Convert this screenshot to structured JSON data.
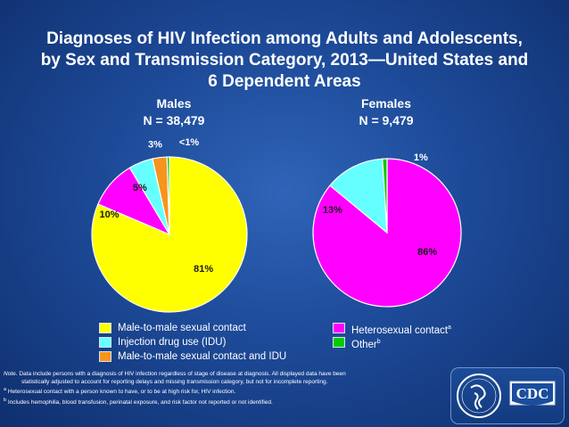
{
  "title": {
    "line1": "Diagnoses of HIV Infection among Adults and Adolescents,",
    "line2": "by Sex and Transmission Category, 2013—United States and",
    "line3": "6 Dependent Areas"
  },
  "colors": {
    "msm": "#ffff00",
    "idu": "#66ffff",
    "msm_idu": "#f7941d",
    "heterosexual": "#ff00ff",
    "other": "#00cc00"
  },
  "chart_data": [
    {
      "type": "pie",
      "title": "Males",
      "subtitle": "N = 38,479",
      "slices": [
        {
          "category": "Male-to-male sexual contact",
          "value": 81,
          "label": "81%"
        },
        {
          "category": "Heterosexual contact",
          "value": 10,
          "label": "10%"
        },
        {
          "category": "Injection drug use (IDU)",
          "value": 5,
          "label": "5%"
        },
        {
          "category": "Male-to-male sexual contact and IDU",
          "value": 3,
          "label": "3%"
        },
        {
          "category": "Other",
          "value": 0.5,
          "label": "<1%"
        }
      ]
    },
    {
      "type": "pie",
      "title": "Females",
      "subtitle": "N = 9,479",
      "slices": [
        {
          "category": "Heterosexual contact",
          "value": 86,
          "label": "86%"
        },
        {
          "category": "Injection drug use (IDU)",
          "value": 13,
          "label": "13%"
        },
        {
          "category": "Other",
          "value": 1,
          "label": "1%"
        }
      ]
    }
  ],
  "legend": {
    "left": [
      {
        "key": "msm",
        "label": "Male-to-male sexual contact"
      },
      {
        "key": "idu",
        "label": "Injection drug use (IDU)"
      },
      {
        "key": "msm_idu",
        "label": "Male-to-male sexual contact and IDU"
      }
    ],
    "right": [
      {
        "key": "heterosexual",
        "label": "Heterosexual contact",
        "sup": "a"
      },
      {
        "key": "other",
        "label": "Other",
        "sup": "b"
      }
    ]
  },
  "notes": {
    "note_label": "Note.",
    "note_text": "Data include persons with a diagnosis of HIV infection regardless of stage of disease at diagnosis. All displayed data have been",
    "note_text2": "statistically adjusted to account for reporting delays and missing transmission category, but not for incomplete reporting.",
    "a_marker": "a",
    "a_text": "Heterosexual contact with a person known to have, or to be at high risk for, HIV infection.",
    "b_marker": "b",
    "b_text": "Includes hemophilia, blood transfusion, perinatal exposure, and risk factor not reported or not identified."
  },
  "logo": {
    "text": "CDC"
  }
}
